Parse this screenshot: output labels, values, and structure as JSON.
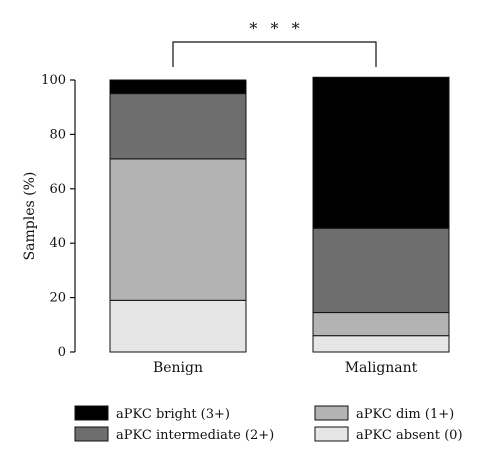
{
  "chart_data": {
    "type": "bar",
    "stacked": true,
    "categories": [
      "Benign",
      "Malignant"
    ],
    "series": [
      {
        "name": "aPKC absent (0)",
        "color": "#e6e6e6",
        "values": [
          19,
          6
        ]
      },
      {
        "name": "aPKC dim (1+)",
        "color": "#b3b3b3",
        "values": [
          52,
          8.5
        ]
      },
      {
        "name": "aPKC intermediate (2+)",
        "color": "#6e6e6e",
        "values": [
          24,
          31
        ]
      },
      {
        "name": "aPKC bright (3+)",
        "color": "#000000",
        "values": [
          5,
          55.5
        ]
      }
    ],
    "ylabel": "Samples (%)",
    "xlabel": "",
    "ylim": [
      0,
      100
    ],
    "yticks": [
      0,
      20,
      40,
      60,
      80,
      100
    ],
    "annotation": "* * *",
    "legend": {
      "position": "bottom",
      "order": [
        "aPKC bright (3+)",
        "aPKC dim (1+)",
        "aPKC intermediate (2+)",
        "aPKC absent (0)"
      ]
    }
  }
}
